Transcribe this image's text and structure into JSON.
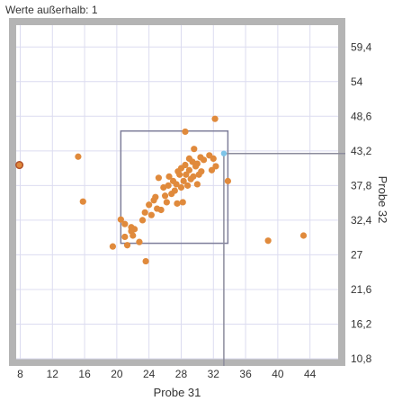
{
  "outside_label": "Werte außerhalb: 1",
  "colors": {
    "frame": "#b4b4b4",
    "plot_bg": "#ffffff",
    "grid": "#dcdcf0",
    "point": "#e08a3c",
    "selection": "#7e7e9a",
    "crosshair": "#8c8c9c",
    "cursor_point": "#7ec4e8",
    "outlier_point": "#b0502a"
  },
  "chart_data": {
    "type": "scatter",
    "xlabel": "Probe 31",
    "ylabel": "Probe 32",
    "xlim": [
      7.5,
      47.5
    ],
    "ylim": [
      10.8,
      62.8
    ],
    "x_ticks": [
      "8",
      "12",
      "16",
      "20",
      "24",
      "28",
      "32",
      "36",
      "40",
      "44"
    ],
    "y_ticks": [
      "10,8",
      "16,2",
      "21,6",
      "27",
      "32,4",
      "37,8",
      "43,2",
      "48,6",
      "54",
      "59,4"
    ],
    "grid": true,
    "selection_box": {
      "x_range": [
        20.5,
        33.8
      ],
      "y_range": [
        28.8,
        46.3
      ]
    },
    "crosshair": {
      "x": 33.3,
      "y": 42.8
    },
    "outliers": [
      {
        "x": 7.9,
        "y": 41.0
      }
    ],
    "points": [
      [
        15.2,
        42.3
      ],
      [
        15.8,
        35.3
      ],
      [
        19.5,
        28.3
      ],
      [
        20.5,
        32.5
      ],
      [
        21.0,
        31.8
      ],
      [
        21.0,
        29.8
      ],
      [
        21.3,
        28.5
      ],
      [
        21.8,
        30.7
      ],
      [
        21.8,
        31.3
      ],
      [
        22.0,
        30.0
      ],
      [
        22.2,
        31.0
      ],
      [
        22.8,
        29.0
      ],
      [
        23.2,
        32.4
      ],
      [
        23.5,
        33.6
      ],
      [
        23.6,
        26.0
      ],
      [
        24.0,
        34.8
      ],
      [
        24.3,
        33.2
      ],
      [
        24.6,
        35.5
      ],
      [
        24.8,
        36.0
      ],
      [
        25.0,
        34.2
      ],
      [
        25.2,
        39.0
      ],
      [
        25.5,
        34.0
      ],
      [
        25.8,
        37.5
      ],
      [
        26.0,
        36.2
      ],
      [
        26.2,
        35.2
      ],
      [
        26.4,
        37.8
      ],
      [
        26.5,
        39.2
      ],
      [
        26.8,
        36.5
      ],
      [
        27.0,
        38.5
      ],
      [
        27.2,
        37.0
      ],
      [
        27.4,
        38.0
      ],
      [
        27.5,
        35.0
      ],
      [
        27.6,
        40.0
      ],
      [
        27.8,
        39.5
      ],
      [
        28.0,
        37.5
      ],
      [
        28.0,
        40.5
      ],
      [
        28.2,
        35.2
      ],
      [
        28.3,
        38.5
      ],
      [
        28.5,
        41.0
      ],
      [
        28.5,
        46.2
      ],
      [
        28.6,
        39.5
      ],
      [
        28.8,
        37.8
      ],
      [
        29.0,
        40.2
      ],
      [
        29.0,
        42.0
      ],
      [
        29.2,
        38.8
      ],
      [
        29.4,
        41.5
      ],
      [
        29.5,
        39.2
      ],
      [
        29.6,
        43.5
      ],
      [
        29.8,
        40.8
      ],
      [
        30.0,
        38.0
      ],
      [
        30.0,
        41.2
      ],
      [
        30.2,
        39.5
      ],
      [
        30.4,
        42.2
      ],
      [
        30.5,
        40.0
      ],
      [
        30.8,
        41.8
      ],
      [
        31.5,
        42.5
      ],
      [
        31.8,
        40.2
      ],
      [
        32.0,
        42.0
      ],
      [
        32.2,
        48.2
      ],
      [
        32.3,
        40.8
      ],
      [
        33.8,
        38.5
      ],
      [
        38.8,
        29.2
      ],
      [
        43.2,
        30.0
      ]
    ]
  }
}
